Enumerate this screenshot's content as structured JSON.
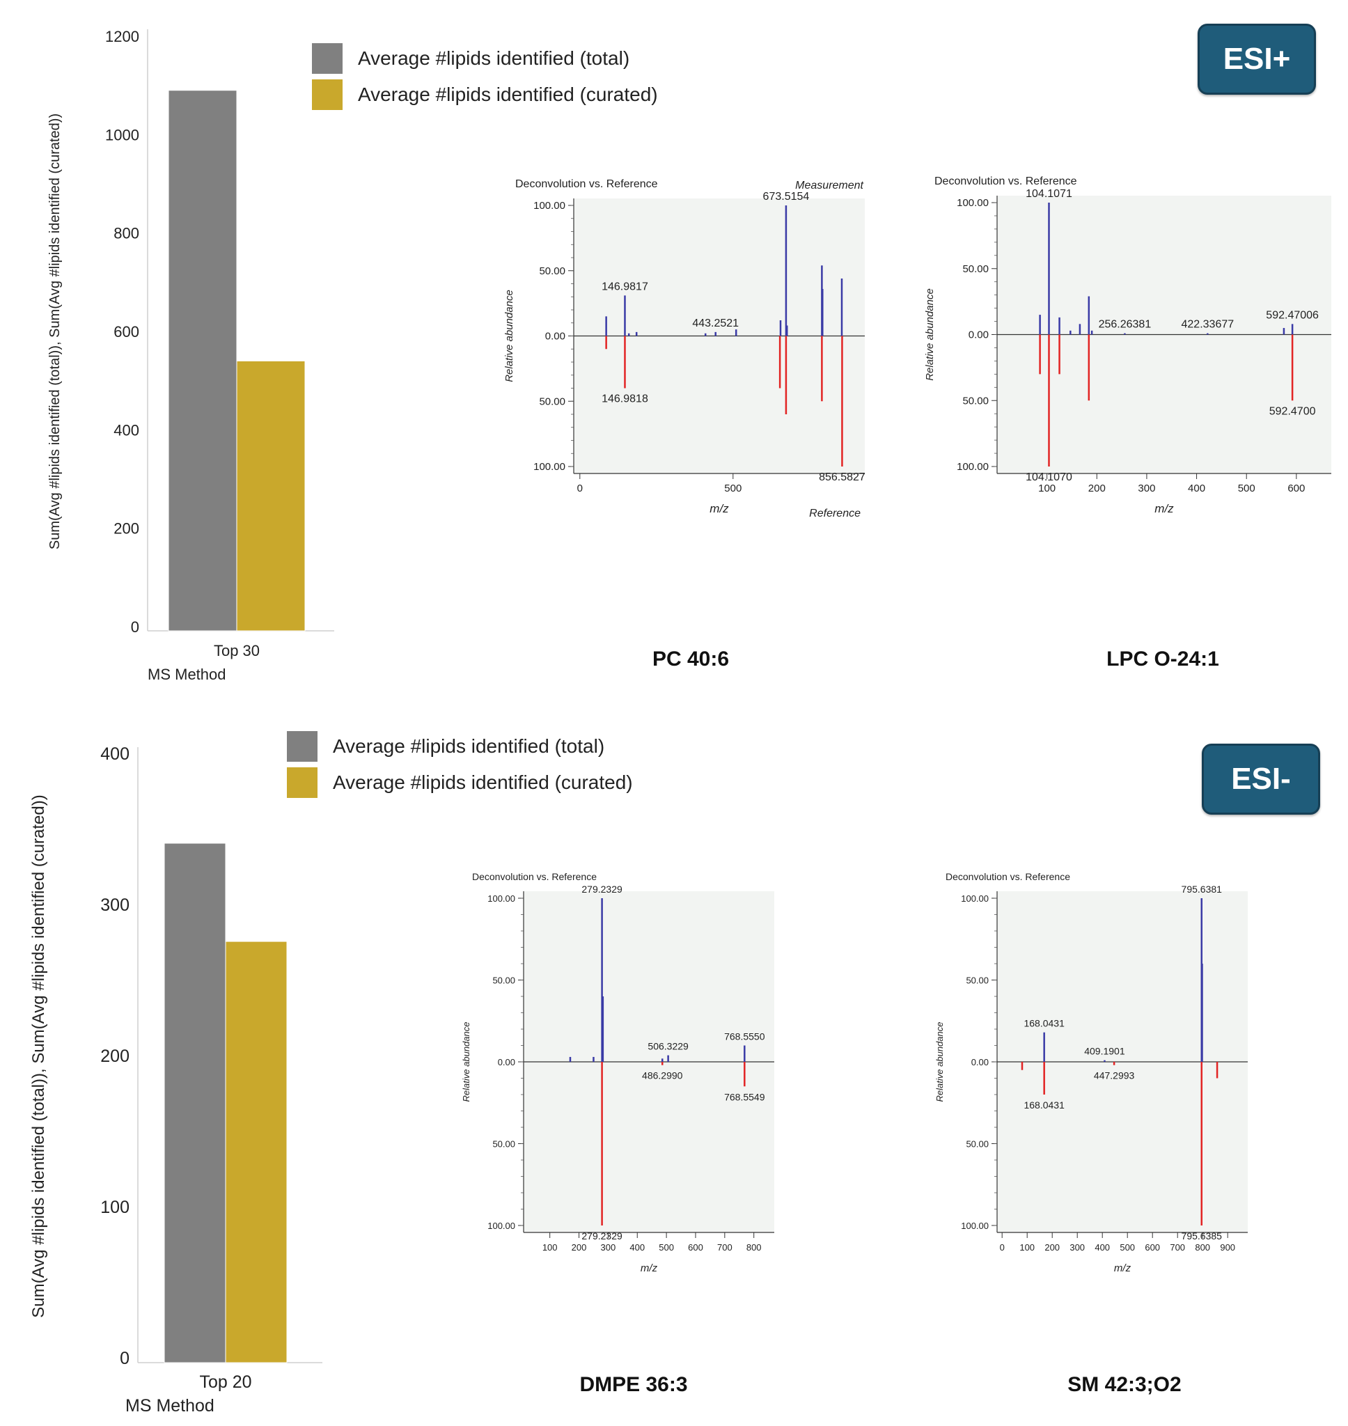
{
  "colors": {
    "total": "#808080",
    "curated": "#c9a82c",
    "measurement": "#3a3aa6",
    "reference": "#e22424",
    "badge_bg": "#1f5c7a",
    "plot_bg": "#f2f4f2"
  },
  "top": {
    "badge": "ESI+",
    "legend": {
      "total": "Average #lipids identified (total)",
      "curated": "Average #lipids identified (curated)"
    },
    "bar_chart": {
      "type": "bar",
      "categories": [
        "Top 30"
      ],
      "series": [
        {
          "name": "Average #lipids identified (total)",
          "values": [
            1090
          ]
        },
        {
          "name": "Average #lipids identified (curated)",
          "values": [
            540
          ]
        }
      ],
      "ylabel": "Sum(Avg #lipids identified (total)), Sum(Avg #lipids identified (curated))",
      "xlabel": "MS Method",
      "ylim": [
        0,
        1200
      ],
      "yticks": [
        "1200",
        "1000",
        "800",
        "600",
        "400",
        "200",
        "0"
      ],
      "ytick_values": [
        1200,
        1000,
        800,
        600,
        400,
        200,
        0
      ]
    }
  },
  "bottom": {
    "badge": "ESI-",
    "legend": {
      "total": "Average #lipids identified (total)",
      "curated": "Average #lipids identified (curated)"
    },
    "bar_chart": {
      "type": "bar",
      "categories": [
        "Top 20"
      ],
      "series": [
        {
          "name": "Average #lipids identified (total)",
          "values": [
            341
          ]
        },
        {
          "name": "Average #lipids identified (curated)",
          "values": [
            276
          ]
        }
      ],
      "ylabel": "Sum(Avg #lipids identified (total)), Sum(Avg #lipids identified (curated))",
      "xlabel": "MS Method",
      "ylim": [
        0,
        400
      ],
      "yticks": [
        "400",
        "300",
        "200",
        "100",
        "0"
      ],
      "ytick_values": [
        400,
        300,
        200,
        100,
        0
      ]
    }
  },
  "chart_data": [
    {
      "type": "bar",
      "title": "ESI+",
      "categories": [
        "Top 30"
      ],
      "series": [
        {
          "name": "Average #lipids identified (total)",
          "values": [
            1090
          ]
        },
        {
          "name": "Average #lipids identified (curated)",
          "values": [
            540
          ]
        }
      ],
      "xlabel": "MS Method",
      "ylabel": "Sum(Avg #lipids identified (total)), Sum(Avg #lipids identified (curated))",
      "ylim": [
        0,
        1200
      ]
    },
    {
      "type": "bar",
      "title": "ESI-",
      "categories": [
        "Top 20"
      ],
      "series": [
        {
          "name": "Average #lipids identified (total)",
          "values": [
            341
          ]
        },
        {
          "name": "Average #lipids identified (curated)",
          "values": [
            276
          ]
        }
      ],
      "xlabel": "MS Method",
      "ylabel": "Sum(Avg #lipids identified (total)), Sum(Avg #lipids identified (curated))",
      "ylim": [
        0,
        400
      ]
    }
  ],
  "spectra": [
    {
      "name": "PC 40:6",
      "header": "Deconvolution vs. Reference",
      "top_label": "Measurement",
      "bottom_label": "Reference",
      "xlabel": "m/z",
      "ylabel": "Relative abundance",
      "xlim": [
        -20,
        930
      ],
      "xticks": [
        0,
        500
      ],
      "xtick_labels": [
        "0",
        "500"
      ],
      "ytick_labels": {
        "p100": "100.00",
        "p50": "50.00",
        "zero": "0.00",
        "n50": "50.00",
        "n100": "100.00"
      },
      "measurement": [
        [
          86,
          15
        ],
        [
          147,
          31
        ],
        [
          160,
          2
        ],
        [
          185,
          3
        ],
        [
          410,
          2
        ],
        [
          443,
          3
        ],
        [
          510,
          5
        ],
        [
          655,
          12
        ],
        [
          673,
          100
        ],
        [
          676,
          8
        ],
        [
          790,
          54
        ],
        [
          792,
          36
        ],
        [
          855,
          44
        ]
      ],
      "reference": [
        [
          86,
          -10
        ],
        [
          147,
          -40
        ],
        [
          653,
          -40
        ],
        [
          673,
          -60
        ],
        [
          790,
          -50
        ],
        [
          856,
          -100
        ]
      ],
      "labels": [
        {
          "text": "673.5154",
          "x": 673,
          "y": 100
        },
        {
          "text": "146.9817",
          "x": 147,
          "y": 31
        },
        {
          "text": "443.2521",
          "x": 443,
          "y": 3
        },
        {
          "text": "146.9818",
          "x": 147,
          "y": -40
        },
        {
          "text": "856.5827",
          "x": 856,
          "y": -100
        }
      ]
    },
    {
      "name": "LPC O-24:1",
      "header": "Deconvolution vs. Reference",
      "top_label": "",
      "bottom_label": "",
      "xlabel": "m/z",
      "ylabel": "Relative abundance",
      "xlim": [
        0,
        670
      ],
      "xticks": [
        100,
        200,
        300,
        400,
        500,
        600
      ],
      "xtick_labels": [
        "100",
        "200",
        "300",
        "400",
        "500",
        "600"
      ],
      "ytick_labels": {
        "p100": "100.00",
        "p50": "50.00",
        "zero": "0.00",
        "n50": "50.00",
        "n100": "100.00"
      },
      "measurement": [
        [
          86,
          15
        ],
        [
          104,
          100
        ],
        [
          125,
          13
        ],
        [
          147,
          3
        ],
        [
          166,
          8
        ],
        [
          184,
          29
        ],
        [
          190,
          3
        ],
        [
          256,
          1
        ],
        [
          422,
          1
        ],
        [
          575,
          5
        ],
        [
          592,
          8
        ]
      ],
      "reference": [
        [
          86,
          -30
        ],
        [
          104,
          -100
        ],
        [
          125,
          -30
        ],
        [
          184,
          -50
        ],
        [
          592,
          -50
        ]
      ],
      "labels": [
        {
          "text": "104.1071",
          "x": 104,
          "y": 100
        },
        {
          "text": "256.26381",
          "x": 256,
          "y": 1
        },
        {
          "text": "422.33677",
          "x": 422,
          "y": 1
        },
        {
          "text": "592.47006",
          "x": 592,
          "y": 8
        },
        {
          "text": "104.1070",
          "x": 104,
          "y": -100
        },
        {
          "text": "592.4700",
          "x": 592,
          "y": -50
        }
      ]
    },
    {
      "name": "DMPE 36:3",
      "header": "Deconvolution vs. Reference",
      "top_label": "",
      "bottom_label": "",
      "xlabel": "m/z",
      "ylabel": "Relative abundance",
      "xlim": [
        10,
        870
      ],
      "xticks": [
        100,
        200,
        300,
        400,
        500,
        600,
        700,
        800
      ],
      "xtick_labels": [
        "100",
        "200",
        "300",
        "400",
        "500",
        "600",
        "700",
        "800"
      ],
      "ytick_labels": {
        "p100": "100.00",
        "p50": "50.00",
        "zero": "0.00",
        "n50": "50.00",
        "n100": "100.00"
      },
      "measurement": [
        [
          170,
          3
        ],
        [
          250,
          3
        ],
        [
          279,
          100
        ],
        [
          282,
          40
        ],
        [
          486,
          2
        ],
        [
          506,
          4
        ],
        [
          768,
          10
        ]
      ],
      "reference": [
        [
          279,
          -100
        ],
        [
          486,
          -2
        ],
        [
          768,
          -15
        ]
      ],
      "labels": [
        {
          "text": "279.2329",
          "x": 279,
          "y": 100
        },
        {
          "text": "506.3229",
          "x": 506,
          "y": 4
        },
        {
          "text": "768.5550",
          "x": 768,
          "y": 10
        },
        {
          "text": "486.2990",
          "x": 486,
          "y": -2
        },
        {
          "text": "768.5549",
          "x": 768,
          "y": -15
        },
        {
          "text": "279.2329",
          "x": 279,
          "y": -100
        }
      ]
    },
    {
      "name": "SM 42:3;O2",
      "header": "Deconvolution vs. Reference",
      "top_label": "",
      "bottom_label": "",
      "xlabel": "m/z",
      "ylabel": "Relative abundance",
      "xlim": [
        -20,
        980
      ],
      "xticks": [
        0,
        100,
        200,
        300,
        400,
        500,
        600,
        700,
        800,
        900
      ],
      "xtick_labels": [
        "0",
        "100",
        "200",
        "300",
        "400",
        "500",
        "600",
        "700",
        "800",
        "900"
      ],
      "ytick_labels": {
        "p100": "100.00",
        "p50": "50.00",
        "zero": "0.00",
        "n50": "50.00",
        "n100": "100.00"
      },
      "measurement": [
        [
          168,
          18
        ],
        [
          409,
          1
        ],
        [
          796,
          100
        ],
        [
          798,
          60
        ]
      ],
      "reference": [
        [
          80,
          -5
        ],
        [
          168,
          -20
        ],
        [
          447,
          -2
        ],
        [
          796,
          -100
        ],
        [
          858,
          -10
        ]
      ],
      "labels": [
        {
          "text": "795.6381",
          "x": 796,
          "y": 100
        },
        {
          "text": "168.0431",
          "x": 168,
          "y": 18
        },
        {
          "text": "409.1901",
          "x": 409,
          "y": 1
        },
        {
          "text": "168.0431",
          "x": 168,
          "y": -20
        },
        {
          "text": "447.2993",
          "x": 447,
          "y": -2
        },
        {
          "text": "795.6385",
          "x": 796,
          "y": -100
        }
      ]
    }
  ]
}
